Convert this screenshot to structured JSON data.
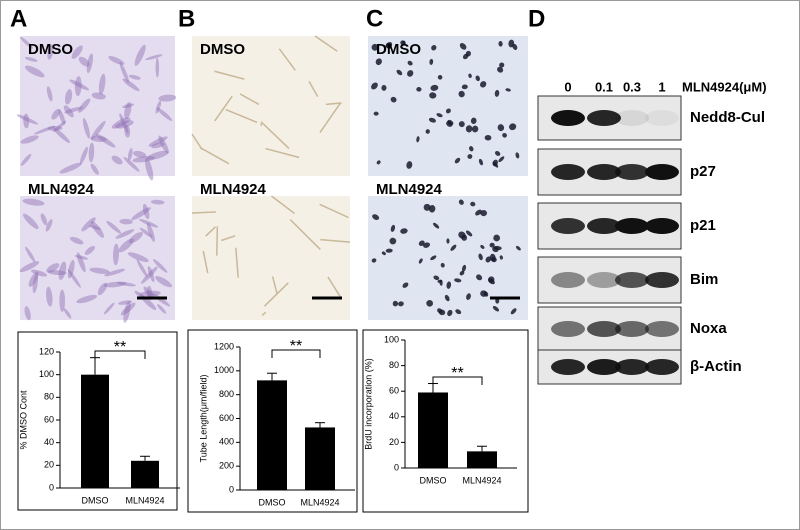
{
  "panels": [
    "A",
    "B",
    "C",
    "D"
  ],
  "images": [
    {
      "top": "DMSO",
      "bottom": "MLN4924"
    },
    {
      "top": "DMSO",
      "bottom": "MLN4924"
    },
    {
      "top": "DMSO",
      "bottom": "MLN4924"
    }
  ],
  "blot": {
    "doses": [
      "0",
      "0.1",
      "0.3",
      "1"
    ],
    "dose_label": "MLN4924(μM)",
    "proteins": [
      "Nedd8-Cul",
      "p27",
      "p21",
      "Bim",
      "Noxa",
      "β-Actin"
    ]
  },
  "chart_data": [
    {
      "type": "bar",
      "y_label": "% DMSO Cont",
      "categories": [
        "DMSO",
        "MLN4924"
      ],
      "values": [
        100,
        24
      ],
      "errors": [
        15,
        4
      ],
      "color": "#000000",
      "ylim": [
        0,
        120
      ],
      "yticks": [
        0,
        20,
        40,
        60,
        80,
        100,
        120
      ],
      "annotation": "**"
    },
    {
      "type": "bar",
      "y_label": "Tube Length(μm/field)",
      "categories": [
        "DMSO",
        "MLN4924"
      ],
      "values": [
        920,
        525
      ],
      "errors": [
        60,
        40
      ],
      "color": "#000000",
      "ylim": [
        0,
        1200
      ],
      "yticks": [
        0,
        200,
        400,
        600,
        800,
        1000,
        1200
      ],
      "annotation": "**"
    },
    {
      "type": "bar",
      "y_label": "BrdU incorporation (%)",
      "categories": [
        "DMSO",
        "MLN4924"
      ],
      "values": [
        59,
        13
      ],
      "errors": [
        7,
        4
      ],
      "color": "#000000",
      "ylim": [
        0,
        100
      ],
      "yticks": [
        0,
        20,
        40,
        60,
        80,
        100
      ],
      "annotation": "**"
    }
  ]
}
